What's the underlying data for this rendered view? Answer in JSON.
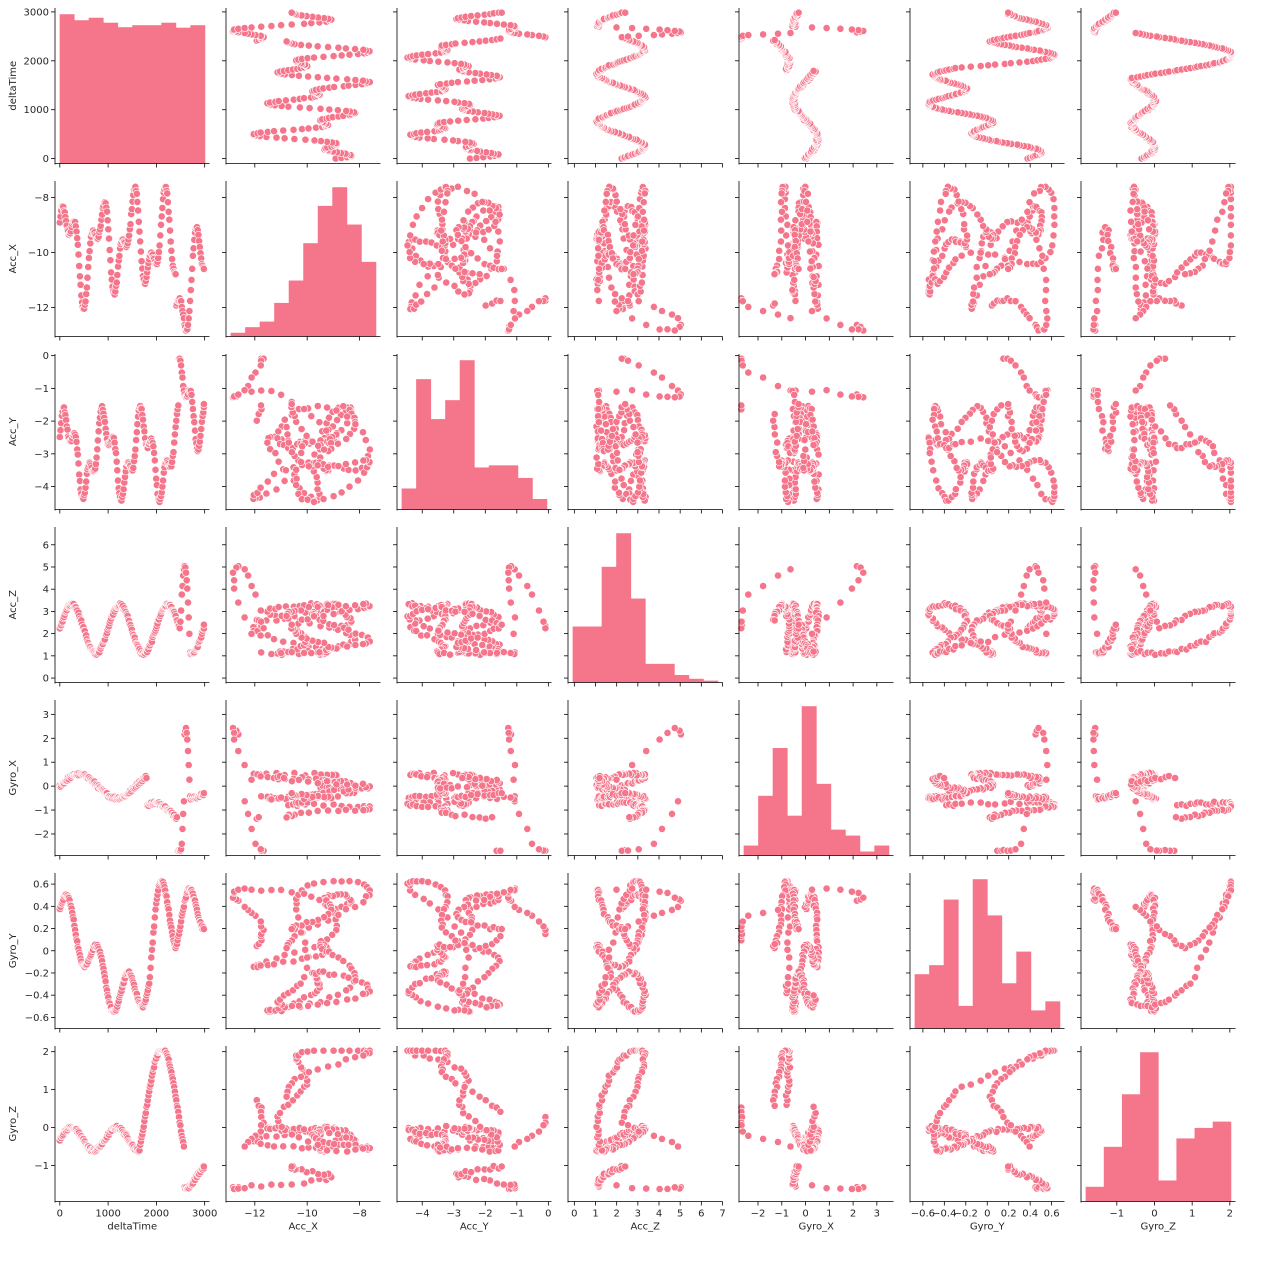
{
  "chart_data": {
    "type": "scatter",
    "title": "",
    "mark_color": "#f5758b",
    "edge_color": "#ffffff",
    "variables": [
      {
        "name": "deltaTime",
        "ticks": [
          0,
          1000,
          2000,
          3000
        ],
        "ylim": [
          -100,
          3080
        ],
        "xlim": [
          -100,
          3100
        ],
        "hist_counts": [
          2990,
          2870,
          2920,
          2820,
          2730,
          2770,
          2770,
          2820,
          2720,
          2770
        ]
      },
      {
        "name": "Acc_X",
        "ticks": [
          -12,
          -10,
          -8
        ],
        "ylim": [
          -13.05,
          -7.4
        ],
        "xlim": [
          -13.1,
          -7.2
        ],
        "hist_counts": [
          2,
          5,
          8,
          18,
          30,
          50,
          70,
          80,
          60,
          40
        ]
      },
      {
        "name": "Acc_Y",
        "ticks": [
          -4,
          -3,
          -2,
          -1,
          0
        ],
        "ylim": [
          -4.7,
          0.05
        ],
        "xlim": [
          -4.8,
          0.1
        ],
        "hist_counts": [
          10,
          62,
          43,
          52,
          71,
          20,
          21,
          21,
          15,
          5
        ]
      },
      {
        "name": "Acc_Z",
        "ticks": [
          0,
          1,
          2,
          3,
          4,
          5,
          6,
          7
        ],
        "ylim": [
          -0.2,
          6.8
        ],
        "xlim": [
          -0.3,
          7.0
        ],
        "hist_counts": [
          30,
          30,
          62,
          80,
          45,
          10,
          10,
          4,
          2,
          1
        ]
      },
      {
        "name": "Gyro_X",
        "ticks": [
          -2,
          -1,
          0,
          1,
          2,
          3
        ],
        "ylim": [
          -2.9,
          3.6
        ],
        "xlim": [
          -2.8,
          3.7
        ],
        "hist_counts": [
          5,
          30,
          54,
          20,
          75,
          36,
          13,
          10,
          2,
          5
        ]
      },
      {
        "name": "Gyro_Y",
        "ticks": [
          -0.6,
          -0.4,
          -0.2,
          0.0,
          0.2,
          0.4,
          0.6
        ],
        "ylim": [
          -0.7,
          0.7
        ],
        "xlim": [
          -0.72,
          0.72
        ],
        "hist_counts": [
          24,
          28,
          57,
          10,
          66,
          50,
          20,
          34,
          8,
          12
        ]
      },
      {
        "name": "Gyro_Z",
        "ticks": [
          -1,
          0,
          1,
          2
        ],
        "ylim": [
          -1.95,
          2.15
        ],
        "xlim": [
          -1.95,
          2.15
        ],
        "hist_counts": [
          7,
          26,
          51,
          71,
          10,
          30,
          35,
          38
        ]
      }
    ]
  }
}
